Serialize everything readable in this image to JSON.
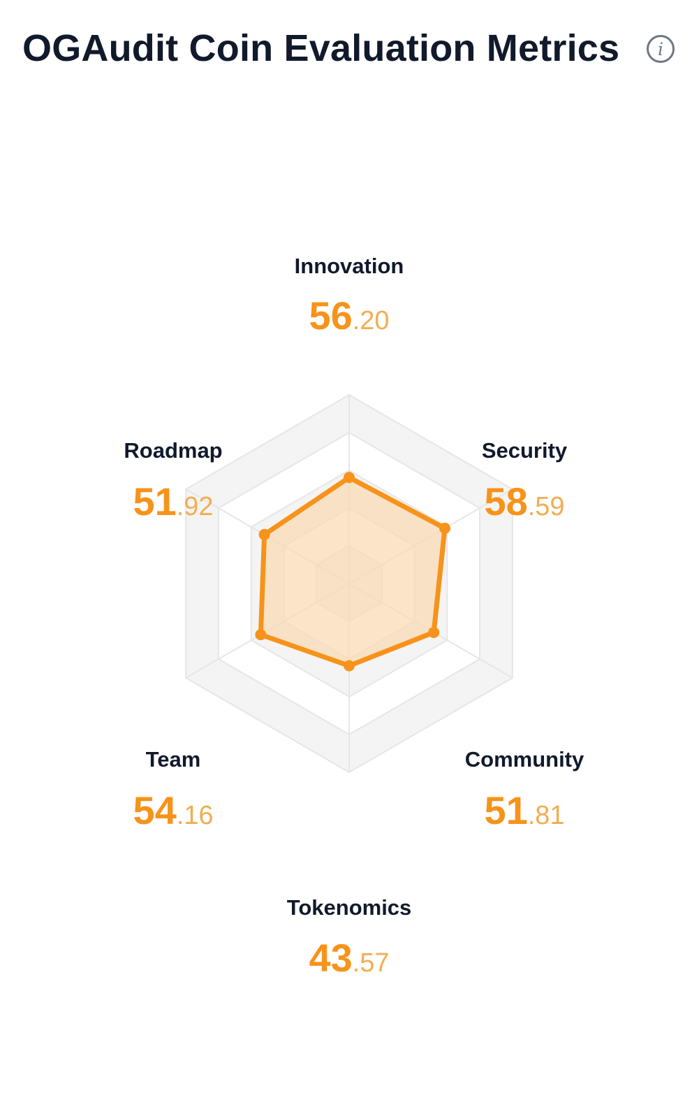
{
  "header": {
    "title": "OGAudit Coin Evaluation Metrics",
    "info_icon": "info-icon",
    "info_glyph": "i"
  },
  "colors": {
    "accent": "#f7931a",
    "accent_light": "#f2ad52",
    "fill": "#fbd9b3",
    "grid_band": "#f4f4f4",
    "grid_line": "#e6e6e6",
    "label": "#111a2c"
  },
  "chart_data": {
    "type": "radar",
    "title": "OGAudit Coin Evaluation Metrics",
    "axes": [
      "Innovation",
      "Security",
      "Community",
      "Tokenomics",
      "Team",
      "Roadmap"
    ],
    "values": [
      56.2,
      58.59,
      51.81,
      43.57,
      54.16,
      51.92
    ],
    "value_display": [
      {
        "int": "56",
        "frac": ".20"
      },
      {
        "int": "58",
        "frac": ".59"
      },
      {
        "int": "51",
        "frac": ".81"
      },
      {
        "int": "43",
        "frac": ".57"
      },
      {
        "int": "54",
        "frac": ".16"
      },
      {
        "int": "51",
        "frac": ".92"
      }
    ],
    "range": [
      0,
      100
    ],
    "rings": 5,
    "grid": true,
    "legend": "none"
  }
}
